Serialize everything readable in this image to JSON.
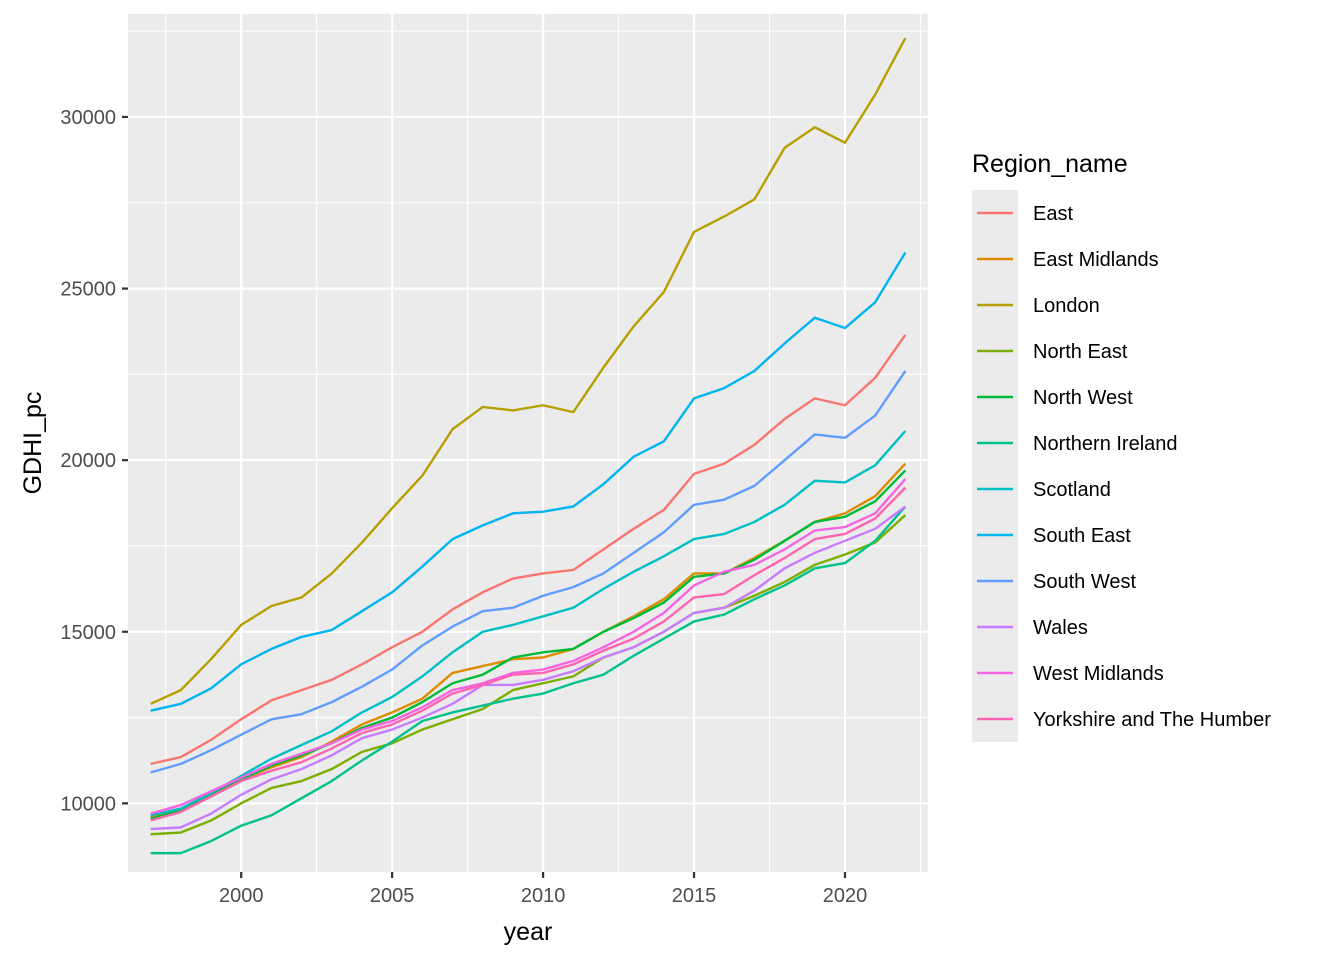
{
  "chart_data": {
    "type": "line",
    "title": "",
    "xlabel": "year",
    "ylabel": "GDHI_pc",
    "xlim": [
      1996.25,
      2022.75
    ],
    "ylim": [
      8000,
      33000
    ],
    "x_ticks": [
      2000,
      2005,
      2010,
      2015,
      2020
    ],
    "y_ticks": [
      10000,
      15000,
      20000,
      25000,
      30000
    ],
    "x_tick_labels": [
      "2000",
      "2005",
      "2010",
      "2015",
      "2020"
    ],
    "y_tick_labels": [
      "10000",
      "15000",
      "20000",
      "25000",
      "30000"
    ],
    "grid": true,
    "panel_background": "#ebebeb",
    "legend": {
      "title": "Region_name",
      "position": "right"
    },
    "x": [
      1997,
      1998,
      1999,
      2000,
      2001,
      2002,
      2003,
      2004,
      2005,
      2006,
      2007,
      2008,
      2009,
      2010,
      2011,
      2012,
      2013,
      2014,
      2015,
      2016,
      2017,
      2018,
      2019,
      2020,
      2021,
      2022
    ],
    "series": [
      {
        "name": "East",
        "color": "#F8766D",
        "values": [
          11150,
          11350,
          11850,
          12450,
          13000,
          13300,
          13600,
          14050,
          14550,
          15000,
          15650,
          16150,
          16550,
          16700,
          16800,
          17400,
          18000,
          18550,
          19600,
          19900,
          20450,
          21200,
          21800,
          21600,
          22400,
          23650
        ]
      },
      {
        "name": "East Midlands",
        "color": "#DE8C00",
        "values": [
          9600,
          9800,
          10250,
          10700,
          11050,
          11350,
          11800,
          12300,
          12650,
          13050,
          13800,
          14000,
          14200,
          14250,
          14500,
          15000,
          15450,
          15950,
          16700,
          16700,
          17150,
          17650,
          18200,
          18450,
          18950,
          19900
        ]
      },
      {
        "name": "London",
        "color": "#B79F00",
        "values": [
          12900,
          13300,
          14200,
          15200,
          15750,
          16000,
          16700,
          17600,
          18600,
          19550,
          20900,
          21550,
          21450,
          21600,
          21400,
          22700,
          23900,
          24900,
          26650,
          27100,
          27600,
          29100,
          29700,
          29250,
          30650,
          32300
        ]
      },
      {
        "name": "North East",
        "color": "#7CAE00",
        "values": [
          9100,
          9150,
          9500,
          10000,
          10450,
          10650,
          11000,
          11500,
          11750,
          12150,
          12450,
          12750,
          13300,
          13500,
          13700,
          14250,
          14550,
          15000,
          15550,
          15700,
          16050,
          16450,
          16950,
          17250,
          17600,
          18400
        ]
      },
      {
        "name": "North West",
        "color": "#00BA38",
        "values": [
          9550,
          9800,
          10250,
          10700,
          11100,
          11400,
          11750,
          12200,
          12500,
          12950,
          13500,
          13750,
          14250,
          14400,
          14500,
          15000,
          15400,
          15850,
          16600,
          16700,
          17100,
          17650,
          18200,
          18350,
          18800,
          19700
        ]
      },
      {
        "name": "Northern Ireland",
        "color": "#00C08B",
        "values": [
          8550,
          8550,
          8900,
          9350,
          9650,
          10150,
          10650,
          11250,
          11800,
          12400,
          12650,
          12850,
          13050,
          13200,
          13500,
          13750,
          14300,
          14800,
          15300,
          15500,
          15950,
          16350,
          16850,
          17000,
          17650,
          18650
        ]
      },
      {
        "name": "Scotland",
        "color": "#00BFC4",
        "values": [
          9650,
          9850,
          10300,
          10800,
          11300,
          11700,
          12100,
          12650,
          13100,
          13700,
          14400,
          15000,
          15200,
          15450,
          15700,
          16250,
          16750,
          17200,
          17700,
          17850,
          18200,
          18700,
          19400,
          19350,
          19850,
          20850
        ]
      },
      {
        "name": "South East",
        "color": "#00B4F0",
        "values": [
          12700,
          12900,
          13350,
          14050,
          14500,
          14850,
          15050,
          15600,
          16150,
          16900,
          17700,
          18100,
          18450,
          18500,
          18650,
          19300,
          20100,
          20550,
          21800,
          22100,
          22600,
          23400,
          24150,
          23850,
          24600,
          26050
        ]
      },
      {
        "name": "South West",
        "color": "#619CFF",
        "values": [
          10900,
          11150,
          11550,
          12000,
          12450,
          12600,
          12950,
          13400,
          13900,
          14600,
          15150,
          15600,
          15700,
          16050,
          16300,
          16700,
          17300,
          17900,
          18700,
          18850,
          19250,
          20000,
          20750,
          20650,
          21300,
          22600
        ]
      },
      {
        "name": "Wales",
        "color": "#C77CFF",
        "values": [
          9250,
          9300,
          9700,
          10250,
          10700,
          11000,
          11400,
          11900,
          12150,
          12500,
          12900,
          13450,
          13450,
          13600,
          13850,
          14250,
          14550,
          15000,
          15550,
          15700,
          16200,
          16850,
          17300,
          17650,
          18000,
          18650
        ]
      },
      {
        "name": "West Midlands",
        "color": "#F564E3",
        "values": [
          9700,
          9950,
          10350,
          10750,
          11150,
          11450,
          11750,
          12150,
          12400,
          12800,
          13300,
          13500,
          13800,
          13900,
          14150,
          14550,
          15000,
          15550,
          16350,
          16750,
          16950,
          17400,
          17950,
          18050,
          18450,
          19450
        ]
      },
      {
        "name": "Yorkshire and The Humber",
        "color": "#FF64B0",
        "values": [
          9500,
          9750,
          10200,
          10650,
          10950,
          11200,
          11600,
          12050,
          12300,
          12700,
          13200,
          13450,
          13750,
          13800,
          14050,
          14450,
          14800,
          15300,
          16000,
          16100,
          16650,
          17150,
          17700,
          17850,
          18300,
          19200
        ]
      }
    ]
  }
}
